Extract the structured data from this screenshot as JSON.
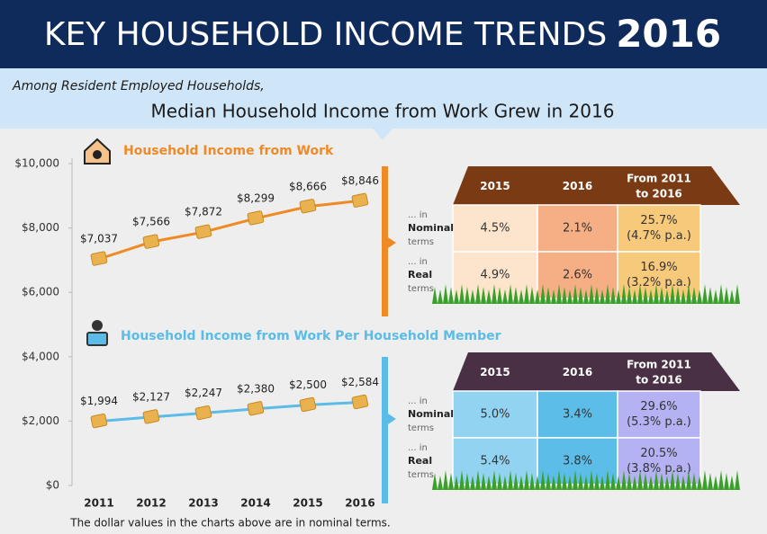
{
  "header": {
    "title": "KEY HOUSEHOLD INCOME TRENDS",
    "year": "2016"
  },
  "banner": {
    "subtitle": "Among Resident Employed Households,",
    "headline": "Median Household Income from Work Grew in 2016"
  },
  "chart_data": {
    "type": "line",
    "categories": [
      "2011",
      "2012",
      "2013",
      "2014",
      "2015",
      "2016"
    ],
    "series": [
      {
        "name": "Household Income from Work",
        "color": "#f08a24",
        "values": [
          7037,
          7566,
          7872,
          8299,
          8666,
          8846
        ],
        "value_labels": [
          "$7,037",
          "$7,566",
          "$7,872",
          "$8,299",
          "$8,666",
          "$8,846"
        ]
      },
      {
        "name": "Household Income from Work Per Household Member",
        "color": "#5bbce8",
        "values": [
          1994,
          2127,
          2247,
          2380,
          2500,
          2584
        ],
        "value_labels": [
          "$1,994",
          "$2,127",
          "$2,247",
          "$2,380",
          "$2,500",
          "$2,584"
        ]
      }
    ],
    "ylim": [
      0,
      10000
    ],
    "yticks": [
      {
        "value": 0,
        "label": "$0"
      },
      {
        "value": 2000,
        "label": "$2,000"
      },
      {
        "value": 4000,
        "label": "$4,000"
      },
      {
        "value": 6000,
        "label": "$6,000"
      },
      {
        "value": 8000,
        "label": "$8,000"
      },
      {
        "value": 10000,
        "label": "$10,000"
      }
    ],
    "grid": false,
    "note": "The dollar values in the charts above are in nominal terms."
  },
  "tables": [
    {
      "header": [
        "2015",
        "2016",
        [
          "From 2011",
          "to 2016"
        ]
      ],
      "rows": [
        {
          "label": [
            "... in",
            "Nominal",
            "terms"
          ],
          "cells": [
            "4.5%",
            "2.1%",
            [
              "25.7%",
              "(4.7% p.a.)"
            ]
          ]
        },
        {
          "label": [
            "... in",
            "Real",
            "terms"
          ],
          "cells": [
            "4.9%",
            "2.6%",
            [
              "16.9%",
              "(3.2% p.a.)"
            ]
          ]
        }
      ]
    },
    {
      "header": [
        "2015",
        "2016",
        [
          "From 2011",
          "to 2016"
        ]
      ],
      "rows": [
        {
          "label": [
            "... in",
            "Nominal",
            "terms"
          ],
          "cells": [
            "5.0%",
            "3.4%",
            [
              "29.6%",
              "(5.3% p.a.)"
            ]
          ]
        },
        {
          "label": [
            "... in",
            "Real",
            "terms"
          ],
          "cells": [
            "5.4%",
            "3.8%",
            [
              "20.5%",
              "(3.8% p.a.)"
            ]
          ]
        }
      ]
    }
  ]
}
